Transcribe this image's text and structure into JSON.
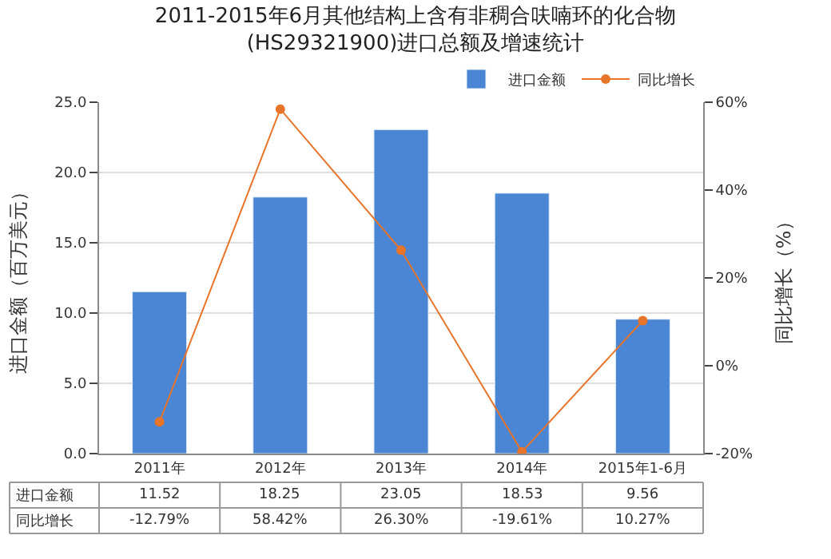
{
  "chart_data": {
    "type": "bar",
    "title": "2011-2015年6月其他结构上含有非稠合呋喃环的化合物\n(HS29321900)进口总额及增速统计",
    "ylabel": "进口金额（百万美元）",
    "y2label": "同比增长（%）",
    "categories": [
      "2011年",
      "2012年",
      "2013年",
      "2014年",
      "2015年1-6月"
    ],
    "series": [
      {
        "name": "进口金额",
        "color": "#4a86d4",
        "values": [
          11.52,
          18.25,
          23.05,
          18.53,
          9.56
        ],
        "value_labels": [
          "11.52",
          "18.25",
          "23.05",
          "18.53",
          "9.56"
        ]
      },
      {
        "name": "同比增长",
        "type": "line",
        "axis": "y2",
        "color": "#e8742a",
        "marker": "circle",
        "values": [
          -12.79,
          58.42,
          26.3,
          -19.61,
          10.27
        ],
        "value_labels": [
          "-12.79%",
          "58.42%",
          "26.30%",
          "-19.61%",
          "10.27%"
        ]
      }
    ],
    "ylim": [
      0,
      25
    ],
    "yticks": [
      {
        "value": 0,
        "label": "0.0"
      },
      {
        "value": 5,
        "label": "5.0"
      },
      {
        "value": 10,
        "label": "10.0"
      },
      {
        "value": 15,
        "label": "15.0"
      },
      {
        "value": 20,
        "label": "20.0"
      },
      {
        "value": 25,
        "label": "25.0"
      }
    ],
    "y2lim": [
      -20,
      60
    ],
    "y2ticks": [
      {
        "value": -20,
        "label": "-20%"
      },
      {
        "value": 0,
        "label": "0%"
      },
      {
        "value": 20,
        "label": "20%"
      },
      {
        "value": 40,
        "label": "40%"
      },
      {
        "value": 60,
        "label": "60%"
      }
    ],
    "grid": "y",
    "legend": "top right"
  }
}
